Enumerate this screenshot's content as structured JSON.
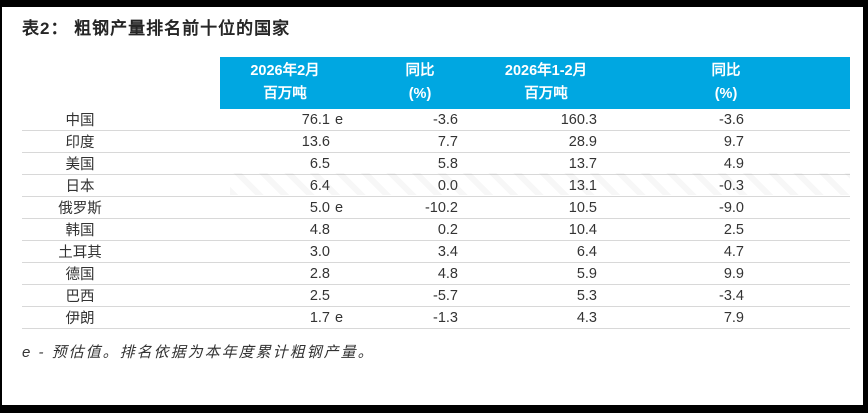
{
  "title": "表2：  粗钢产量排名前十位的国家",
  "footnote": "e - 预估值。排名依据为本年度累计粗钢产量。",
  "colors": {
    "header_bg": "#00A7E1",
    "header_text": "#FFFFFF",
    "row_line": "#D8D8D8"
  },
  "chart_data": {
    "type": "table",
    "title": "表2： 粗钢产量排名前十位的国家",
    "column_headers": [
      {
        "line1": "2026年2月",
        "line2": "百万吨"
      },
      {
        "line1": "同比",
        "line2": "(%)"
      },
      {
        "line1": "2026年1-2月",
        "line2": "百万吨"
      },
      {
        "line1": "同比",
        "line2": "(%)"
      }
    ],
    "rows": [
      {
        "country": "中国",
        "feb": "76.1",
        "est": "e",
        "yoy_feb": "-3.6",
        "janfeb": "160.3",
        "yoy_janfeb": "-3.6"
      },
      {
        "country": "印度",
        "feb": "13.6",
        "est": "",
        "yoy_feb": "7.7",
        "janfeb": "28.9",
        "yoy_janfeb": "9.7"
      },
      {
        "country": "美国",
        "feb": "6.5",
        "est": "",
        "yoy_feb": "5.8",
        "janfeb": "13.7",
        "yoy_janfeb": "4.9"
      },
      {
        "country": "日本",
        "feb": "6.4",
        "est": "",
        "yoy_feb": "0.0",
        "janfeb": "13.1",
        "yoy_janfeb": "-0.3"
      },
      {
        "country": "俄罗斯",
        "feb": "5.0",
        "est": "e",
        "yoy_feb": "-10.2",
        "janfeb": "10.5",
        "yoy_janfeb": "-9.0"
      },
      {
        "country": "韩国",
        "feb": "4.8",
        "est": "",
        "yoy_feb": "0.2",
        "janfeb": "10.4",
        "yoy_janfeb": "2.5"
      },
      {
        "country": "土耳其",
        "feb": "3.0",
        "est": "",
        "yoy_feb": "3.4",
        "janfeb": "6.4",
        "yoy_janfeb": "4.7"
      },
      {
        "country": "德国",
        "feb": "2.8",
        "est": "",
        "yoy_feb": "4.8",
        "janfeb": "5.9",
        "yoy_janfeb": "9.9"
      },
      {
        "country": "巴西",
        "feb": "2.5",
        "est": "",
        "yoy_feb": "-5.7",
        "janfeb": "5.3",
        "yoy_janfeb": "-3.4"
      },
      {
        "country": "伊朗",
        "feb": "1.7",
        "est": "e",
        "yoy_feb": "-1.3",
        "janfeb": "4.3",
        "yoy_janfeb": "7.9"
      }
    ],
    "footnote": "e - 预估值。排名依据为本年度累计粗钢产量。"
  }
}
